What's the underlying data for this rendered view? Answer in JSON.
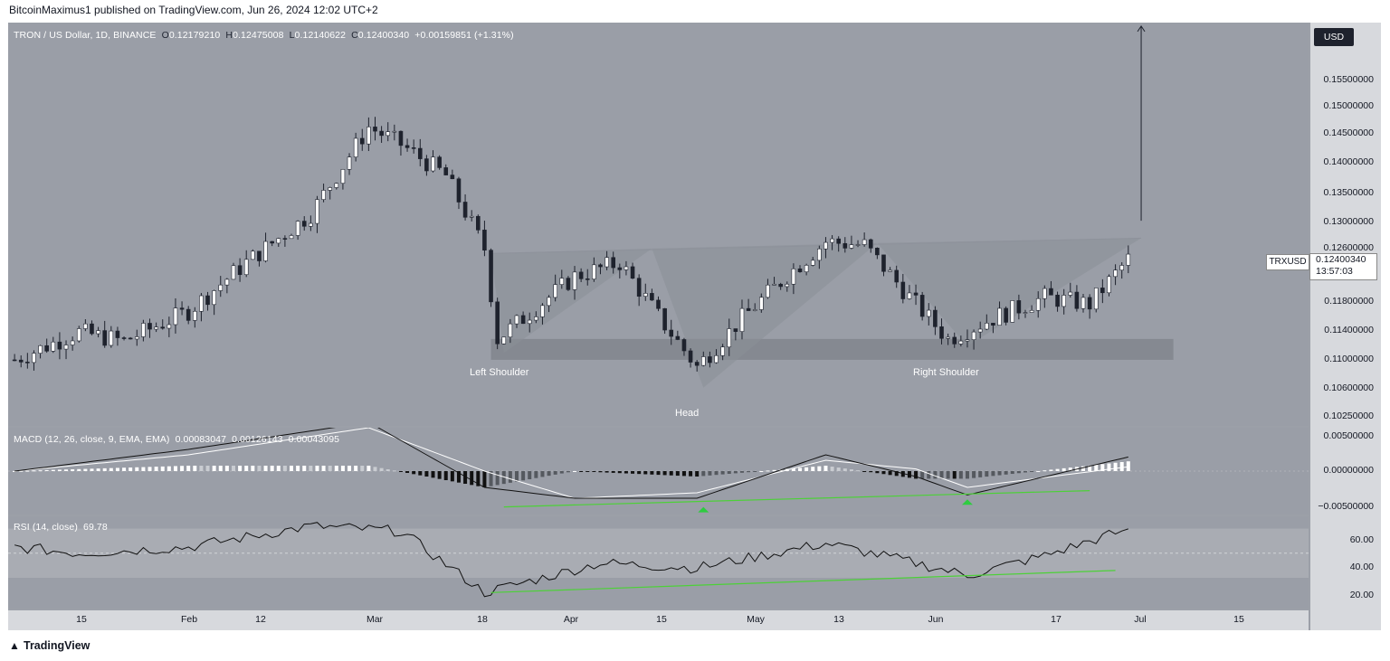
{
  "header": {
    "published_text": "BitcoinMaximus1 published on TradingView.com, Jun 26, 2024 12:02 UTC+2"
  },
  "legend": {
    "symbol_title": "TRON / US Dollar, 1D, BINANCE",
    "open_label": "O",
    "open_value": "0.12179210",
    "high_label": "H",
    "high_value": "0.12475008",
    "low_label": "L",
    "low_value": "0.12140622",
    "close_label": "C",
    "close_value": "0.12400340",
    "change_value": "+0.00159851 (+1.31%)"
  },
  "currency_button": "USD",
  "price_axis_labels": [
    "0.15500000",
    "0.15000000",
    "0.14500000",
    "0.14000000",
    "0.13500000",
    "0.13000000",
    "0.12600000",
    "0.11800000",
    "0.11400000",
    "0.11000000",
    "0.10600000",
    "0.10250000"
  ],
  "last_price": {
    "symbol": "TRXUSD",
    "price": "0.12400340",
    "countdown": "13:57:03"
  },
  "pattern_labels": {
    "left_shoulder": "Left Shoulder",
    "head": "Head",
    "right_shoulder": "Right Shoulder"
  },
  "macd": {
    "legend_title": "MACD (12, 26, close, 9, EMA, EMA)",
    "histogram_value": "0.00083047",
    "macd_value": "0.00126143",
    "signal_value": "0.00043095",
    "axis_labels": [
      "0.00500000",
      "0.00000000",
      "−0.00500000"
    ]
  },
  "rsi": {
    "legend_title": "RSI (14, close)",
    "value": "69.78",
    "axis_labels": [
      "60.00",
      "40.00",
      "20.00"
    ]
  },
  "time_axis_labels": [
    "15",
    "Feb",
    "12",
    "Mar",
    "18",
    "Apr",
    "15",
    "May",
    "13",
    "Jun",
    "17",
    "Jul",
    "15"
  ],
  "footer": {
    "brand": "TradingView"
  },
  "colors": {
    "up": "#ffffff",
    "down": "#1e222d",
    "divergence_line": "#4cd137",
    "arrow": "#2ecc40",
    "pattern_fill": "#8b8f98"
  },
  "chart_data": {
    "type": "candlestick",
    "title": "TRON / US Dollar, 1D, BINANCE",
    "interval": "1D",
    "x_range": [
      "2024-01-04",
      "2024-07-24"
    ],
    "ylim": [
      0.1,
      0.158
    ],
    "series_close": {
      "dates": [
        "2024-01-05",
        "2024-01-15",
        "2024-01-22",
        "2024-02-01",
        "2024-02-10",
        "2024-02-20",
        "2024-02-29",
        "2024-03-05",
        "2024-03-12",
        "2024-03-18",
        "2024-03-20",
        "2024-04-01",
        "2024-04-08",
        "2024-04-15",
        "2024-04-20",
        "2024-04-27",
        "2024-05-05",
        "2024-05-10",
        "2024-05-16",
        "2024-05-24",
        "2024-05-29",
        "2024-06-05",
        "2024-06-13",
        "2024-06-20",
        "2024-06-26"
      ],
      "close": [
        0.1095,
        0.1135,
        0.1122,
        0.1165,
        0.1235,
        0.1305,
        0.143,
        0.1405,
        0.136,
        0.1255,
        0.1125,
        0.1215,
        0.1235,
        0.1145,
        0.1085,
        0.1155,
        0.1225,
        0.1265,
        0.126,
        0.1175,
        0.1125,
        0.1155,
        0.1185,
        0.1175,
        0.124
      ]
    },
    "macd_series": {
      "dates": [
        "2024-01-05",
        "2024-02-01",
        "2024-02-29",
        "2024-03-18",
        "2024-04-01",
        "2024-04-20",
        "2024-05-10",
        "2024-05-24",
        "2024-06-01",
        "2024-06-26"
      ],
      "macd": [
        0.0,
        0.002,
        0.0045,
        -0.0015,
        -0.0025,
        -0.0025,
        0.0015,
        -0.0005,
        -0.0022,
        0.0013
      ],
      "signal": [
        0.0,
        0.0015,
        0.004,
        0.0,
        -0.0025,
        -0.002,
        0.001,
        0.0002,
        -0.0015,
        0.0004
      ]
    },
    "rsi_series": {
      "dates": [
        "2024-01-05",
        "2024-01-15",
        "2024-02-01",
        "2024-02-20",
        "2024-03-05",
        "2024-03-18",
        "2024-04-05",
        "2024-04-20",
        "2024-05-10",
        "2024-05-24",
        "2024-06-01",
        "2024-06-13",
        "2024-06-26"
      ],
      "rsi": [
        55,
        50,
        55,
        72,
        68,
        18,
        42,
        38,
        58,
        42,
        32,
        48,
        69.78
      ]
    },
    "annotations": {
      "head_and_shoulders_support": [
        0.1095,
        0.1125
      ],
      "neckline": {
        "from": [
          "2024-03-19",
          0.1248
        ],
        "to": [
          "2024-06-28",
          0.127
        ]
      },
      "target_arrow": {
        "date": "2024-06-28",
        "from": 0.1295,
        "to": 0.1575
      },
      "macd_bullish_divergence": true,
      "rsi_bullish_divergence": true
    }
  }
}
